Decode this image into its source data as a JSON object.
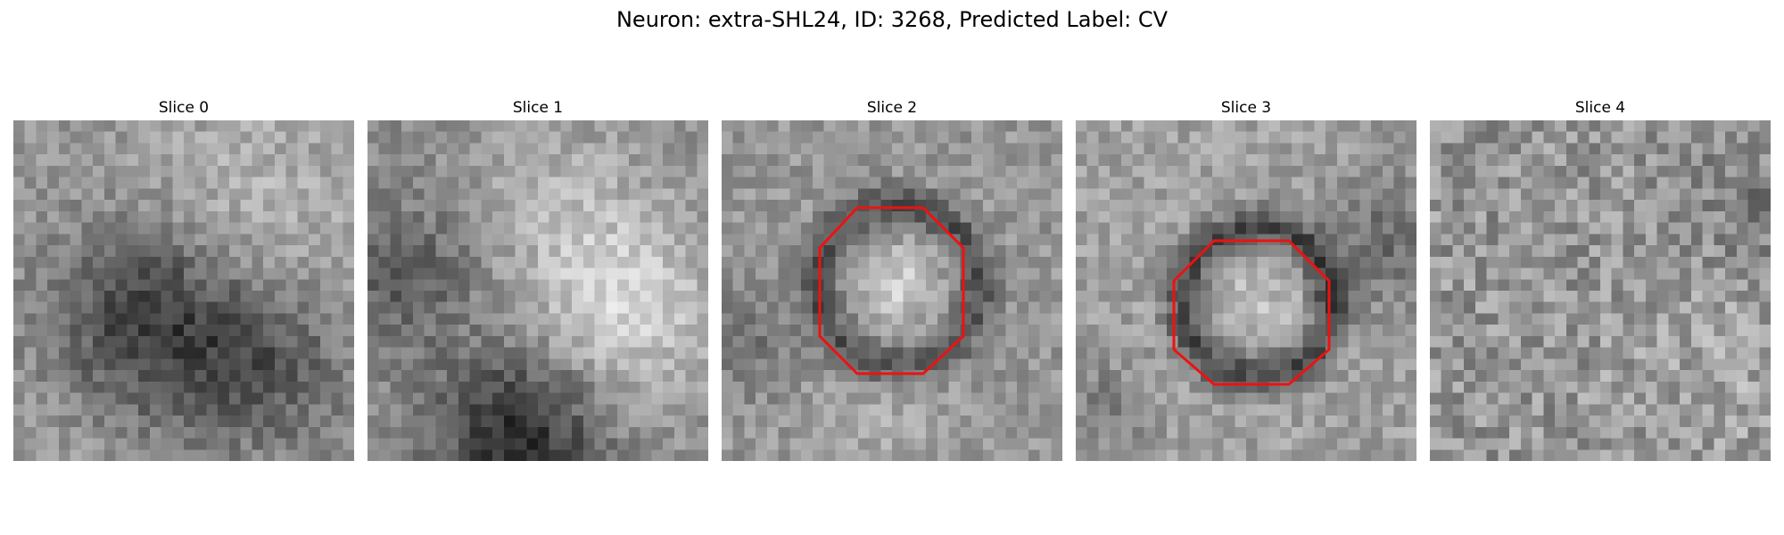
{
  "figure": {
    "title": "Neuron: extra-SHL24, ID: 3268, Predicted Label: CV"
  },
  "panels": [
    {
      "title": "Slice 0",
      "has_roi": false,
      "pattern": "dark-band-lower-middle"
    },
    {
      "title": "Slice 1",
      "has_roi": false,
      "pattern": "bright-center-dark-bottom"
    },
    {
      "title": "Slice 2",
      "has_roi": true,
      "pattern": "ring-centered"
    },
    {
      "title": "Slice 3",
      "has_roi": true,
      "pattern": "dark-ring-centered"
    },
    {
      "title": "Slice 4",
      "has_roi": false,
      "pattern": "noise"
    }
  ],
  "colors": {
    "roi_outline": "#ee1111",
    "colormap": "gray"
  }
}
